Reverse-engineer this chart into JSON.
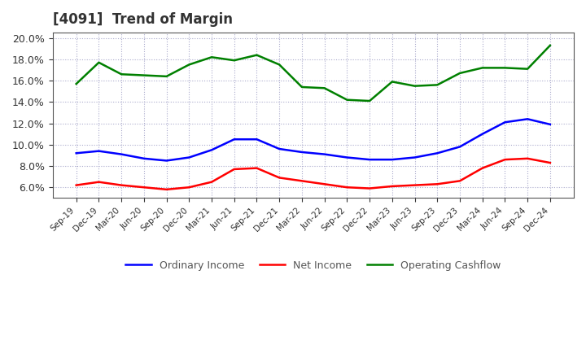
{
  "title": "[4091]  Trend of Margin",
  "x_labels": [
    "Sep-19",
    "Dec-19",
    "Mar-20",
    "Jun-20",
    "Sep-20",
    "Dec-20",
    "Mar-21",
    "Jun-21",
    "Sep-21",
    "Dec-21",
    "Mar-22",
    "Jun-22",
    "Sep-22",
    "Dec-22",
    "Mar-23",
    "Jun-23",
    "Sep-23",
    "Dec-23",
    "Mar-24",
    "Jun-24",
    "Sep-24",
    "Dec-24"
  ],
  "ordinary_income": [
    9.2,
    9.4,
    9.1,
    8.7,
    8.5,
    8.8,
    9.5,
    10.5,
    10.5,
    9.6,
    9.3,
    9.1,
    8.8,
    8.6,
    8.6,
    8.8,
    9.2,
    9.8,
    11.0,
    12.1,
    12.4,
    11.9
  ],
  "net_income": [
    6.2,
    6.5,
    6.2,
    6.0,
    5.8,
    6.0,
    6.5,
    7.7,
    7.8,
    6.9,
    6.6,
    6.3,
    6.0,
    5.9,
    6.1,
    6.2,
    6.3,
    6.6,
    7.8,
    8.6,
    8.7,
    8.3
  ],
  "operating_cashflow": [
    15.7,
    17.7,
    16.6,
    16.5,
    16.4,
    17.5,
    18.2,
    17.9,
    18.4,
    17.5,
    15.4,
    15.3,
    14.2,
    14.1,
    15.9,
    15.5,
    15.6,
    16.7,
    17.2,
    17.2,
    17.1,
    19.3
  ],
  "line_color_ordinary": "#0000ff",
  "line_color_net": "#ff0000",
  "line_color_cashflow": "#008000",
  "ylim_min": 5.0,
  "ylim_max": 20.5,
  "yticks": [
    6.0,
    8.0,
    10.0,
    12.0,
    14.0,
    16.0,
    18.0,
    20.0
  ],
  "background_color": "#ffffff",
  "grid_color": "#aaaacc",
  "title_fontsize": 12,
  "legend_labels": [
    "Ordinary Income",
    "Net Income",
    "Operating Cashflow"
  ]
}
